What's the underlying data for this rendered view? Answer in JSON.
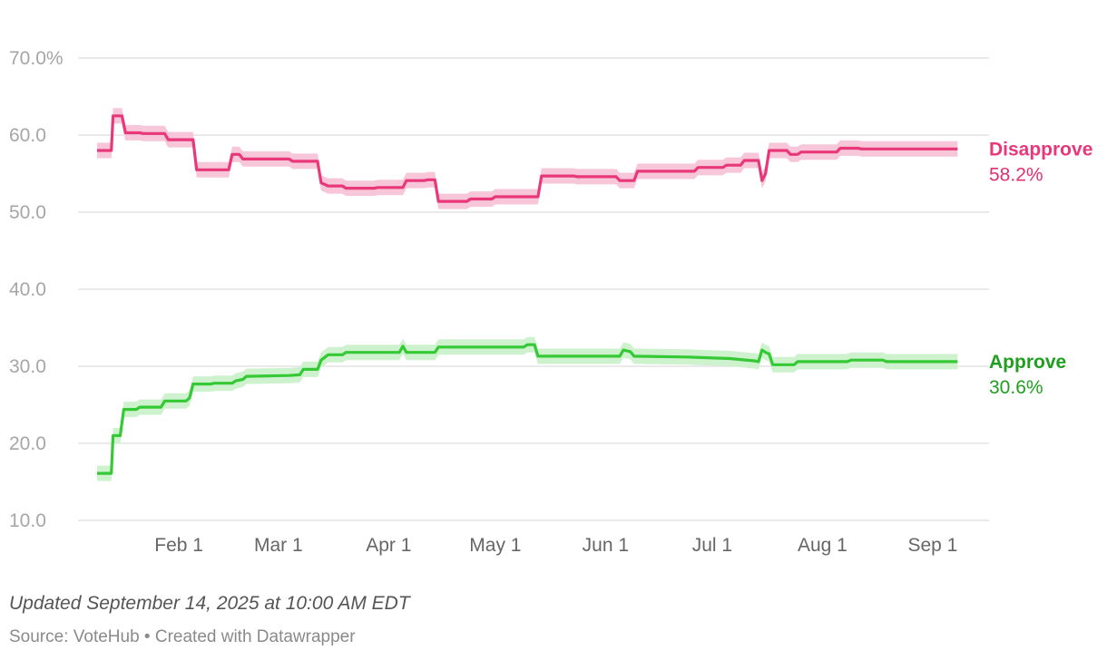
{
  "chart_data": {
    "type": "line",
    "x_range_days": [
      0,
      246
    ],
    "ylim": [
      10,
      70
    ],
    "y_ticks": [
      {
        "value": 70,
        "label": "70.0%"
      },
      {
        "value": 60,
        "label": "60.0"
      },
      {
        "value": 50,
        "label": "50.0"
      },
      {
        "value": 40,
        "label": "40.0"
      },
      {
        "value": 30,
        "label": "30.0"
      },
      {
        "value": 20,
        "label": "20.0"
      },
      {
        "value": 10,
        "label": "10.0"
      }
    ],
    "x_ticks": [
      {
        "day": 23,
        "label": "Feb 1"
      },
      {
        "day": 51,
        "label": "Mar 1"
      },
      {
        "day": 82,
        "label": "Apr 1"
      },
      {
        "day": 112,
        "label": "May 1"
      },
      {
        "day": 143,
        "label": "Jun 1"
      },
      {
        "day": 173,
        "label": "Jul 1"
      },
      {
        "day": 204,
        "label": "Aug 1"
      },
      {
        "day": 235,
        "label": "Sep 1"
      }
    ],
    "series": [
      {
        "name": "Disapprove",
        "end_label": "58.2%",
        "color": "#e8387a",
        "band_color": "#f7c6d8",
        "band_halfwidth": 1.0,
        "points": [
          [
            0,
            58
          ],
          [
            4,
            58
          ],
          [
            4.5,
            62.5
          ],
          [
            7,
            62.5
          ],
          [
            8,
            60.3
          ],
          [
            12,
            60.3
          ],
          [
            13,
            60.2
          ],
          [
            19,
            60.2
          ],
          [
            20,
            59.4
          ],
          [
            27,
            59.4
          ],
          [
            28,
            55.5
          ],
          [
            37,
            55.5
          ],
          [
            38,
            57.5
          ],
          [
            40,
            57.5
          ],
          [
            41,
            56.9
          ],
          [
            54,
            56.9
          ],
          [
            55,
            56.6
          ],
          [
            62,
            56.6
          ],
          [
            63,
            53.8
          ],
          [
            65,
            53.4
          ],
          [
            69,
            53.4
          ],
          [
            70,
            53.1
          ],
          [
            78,
            53.1
          ],
          [
            79,
            53.2
          ],
          [
            86,
            53.2
          ],
          [
            87,
            54.1
          ],
          [
            92,
            54.1
          ],
          [
            93,
            54.2
          ],
          [
            95,
            54.2
          ],
          [
            96,
            51.4
          ],
          [
            104,
            51.4
          ],
          [
            105,
            51.7
          ],
          [
            111,
            51.7
          ],
          [
            112,
            52.0
          ],
          [
            118,
            52.0
          ],
          [
            119,
            52.0
          ],
          [
            124,
            52.0
          ],
          [
            125,
            54.7
          ],
          [
            134,
            54.7
          ],
          [
            135,
            54.6
          ],
          [
            146,
            54.6
          ],
          [
            147,
            54.1
          ],
          [
            151,
            54.1
          ],
          [
            152,
            55.3
          ],
          [
            168,
            55.3
          ],
          [
            169,
            55.8
          ],
          [
            176,
            55.8
          ],
          [
            177,
            56.1
          ],
          [
            181,
            56.1
          ],
          [
            182,
            56.7
          ],
          [
            186,
            56.7
          ],
          [
            187,
            54.1
          ],
          [
            188,
            55.0
          ],
          [
            189,
            58.0
          ],
          [
            194,
            58.0
          ],
          [
            195,
            57.5
          ],
          [
            197,
            57.5
          ],
          [
            198,
            57.8
          ],
          [
            208,
            57.8
          ],
          [
            209,
            58.3
          ],
          [
            214,
            58.3
          ],
          [
            215,
            58.2
          ],
          [
            242,
            58.2
          ]
        ]
      },
      {
        "name": "Approve",
        "end_label": "30.6%",
        "color": "#35c935",
        "band_color": "#cdf2cd",
        "band_halfwidth": 1.0,
        "points": [
          [
            0,
            16.1
          ],
          [
            4,
            16.1
          ],
          [
            4.5,
            21.0
          ],
          [
            6.5,
            21.0
          ],
          [
            7.5,
            24.4
          ],
          [
            11,
            24.4
          ],
          [
            12,
            24.7
          ],
          [
            18,
            24.7
          ],
          [
            19,
            25.5
          ],
          [
            25,
            25.5
          ],
          [
            26,
            25.9
          ],
          [
            27,
            27.7
          ],
          [
            32,
            27.7
          ],
          [
            33,
            27.8
          ],
          [
            38,
            27.8
          ],
          [
            39,
            28.1
          ],
          [
            41,
            28.3
          ],
          [
            42,
            28.7
          ],
          [
            54,
            28.8
          ],
          [
            57,
            28.9
          ],
          [
            58,
            29.6
          ],
          [
            62,
            29.6
          ],
          [
            63,
            30.8
          ],
          [
            65,
            31.5
          ],
          [
            69,
            31.5
          ],
          [
            70,
            31.8
          ],
          [
            76,
            31.8
          ],
          [
            77,
            31.8
          ],
          [
            85,
            31.8
          ],
          [
            86,
            32.6
          ],
          [
            87,
            31.8
          ],
          [
            95,
            31.8
          ],
          [
            96,
            32.5
          ],
          [
            120,
            32.5
          ],
          [
            121,
            32.8
          ],
          [
            123,
            32.8
          ],
          [
            124,
            31.3
          ],
          [
            147,
            31.3
          ],
          [
            148,
            32.1
          ],
          [
            150,
            31.9
          ],
          [
            151,
            31.3
          ],
          [
            166,
            31.2
          ],
          [
            178,
            31.0
          ],
          [
            185,
            30.7
          ],
          [
            186,
            30.6
          ],
          [
            187,
            32.1
          ],
          [
            188,
            31.8
          ],
          [
            189,
            31.6
          ],
          [
            190,
            30.2
          ],
          [
            196,
            30.2
          ],
          [
            197,
            30.6
          ],
          [
            206,
            30.6
          ],
          [
            211,
            30.6
          ],
          [
            212,
            30.8
          ],
          [
            221,
            30.8
          ],
          [
            222,
            30.6
          ],
          [
            242,
            30.6
          ]
        ]
      }
    ]
  },
  "footer": {
    "updated": "Updated September 14, 2025 at 10:00 AM EDT",
    "source": "Source: VoteHub • Created with Datawrapper"
  }
}
